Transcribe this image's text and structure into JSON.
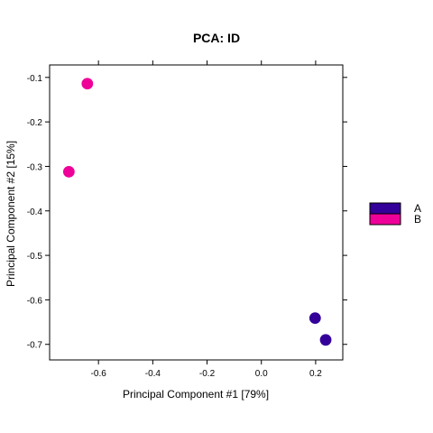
{
  "chart_data": {
    "type": "scatter",
    "title": "PCA: ID",
    "xlabel": "Principal Component #1 [79%]",
    "ylabel": "Principal Component #2 [15%]",
    "xlim": [
      -0.78,
      0.3
    ],
    "ylim": [
      -0.735,
      -0.072
    ],
    "xticks": [
      -0.6,
      -0.4,
      -0.2,
      0.0,
      0.2
    ],
    "xtick_labels": [
      "-0.6",
      "-0.4",
      "-0.2",
      "0.0",
      "0.2"
    ],
    "yticks": [
      -0.1,
      -0.2,
      -0.3,
      -0.4,
      -0.5,
      -0.6,
      -0.7
    ],
    "ytick_labels": [
      "-0.1",
      "-0.2",
      "-0.3",
      "-0.4",
      "-0.5",
      "-0.6",
      "-0.7"
    ],
    "grid": false,
    "legend_position": "right",
    "series": [
      {
        "name": "A",
        "color": "#330099",
        "points": [
          {
            "x": 0.198,
            "y": -0.641
          },
          {
            "x": 0.237,
            "y": -0.69
          }
        ]
      },
      {
        "name": "B",
        "color": "#ee0099",
        "points": [
          {
            "x": -0.641,
            "y": -0.114
          },
          {
            "x": -0.709,
            "y": -0.312
          }
        ]
      }
    ]
  }
}
